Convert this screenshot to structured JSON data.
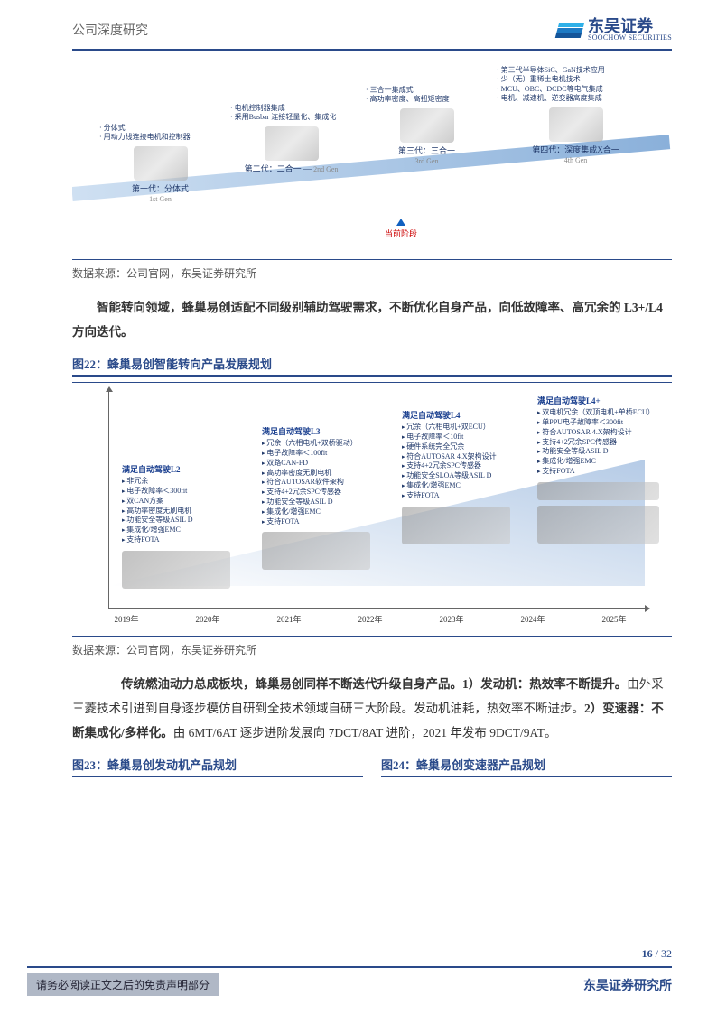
{
  "colors": {
    "brand": "#2a4a8a",
    "logo_bars": [
      "#2fb0e8",
      "#1d7ac4",
      "#14559a"
    ],
    "accent_red": "#c00000",
    "grey_bar": "#b0b8c6",
    "text_grey": "#666666",
    "steer_gradient": "rgba(120,160,210,0.55)"
  },
  "header": {
    "report_type": "公司深度研究",
    "logo_cn": "东吴证券",
    "logo_en": "SOOCHOW SECURITIES"
  },
  "fig21": {
    "source": "数据来源：公司官网，东吴证券研究所",
    "gen1": {
      "bullets": [
        "分体式",
        "用动力线连接电机和控制器"
      ],
      "label_cn": "第一代：分体式",
      "label_en": "1st Gen"
    },
    "gen2": {
      "bullets": [
        "电机控制器集成",
        "采用Busbar 连接轻量化、集成化"
      ],
      "label_cn": "第二代：二合一",
      "label_en": "2nd Gen"
    },
    "gen3": {
      "bullets": [
        "三合一集成式",
        "高功率密度、高扭矩密度"
      ],
      "label_cn": "第三代：三合一",
      "label_en": "3rd Gen"
    },
    "gen4": {
      "bullets": [
        "第三代半导体SiC、GaN技术应用",
        "少（无）重稀土电机技术",
        "MCU、OBC、DCDC等电气集成",
        "电机、减速机、逆变器高度集成"
      ],
      "label_cn": "第四代：深度集成X合一",
      "label_en": "4th Gen"
    },
    "current": "当前阶段"
  },
  "para1_lead": "智能转向领域，蜂巢易创适配不同级别辅助驾驶需求，不断优化自身产品，向低故障率、高冗余的 L3+/L4 方向迭代。",
  "fig22": {
    "caption": "图22：蜂巢易创智能转向产品发展规划",
    "source": "数据来源：公司官网，东吴证券研究所",
    "years": [
      "2019年",
      "2020年",
      "2021年",
      "2022年",
      "2023年",
      "2024年",
      "2025年"
    ],
    "xtick_positions": [
      60,
      150,
      240,
      330,
      420,
      510,
      600
    ],
    "l2": {
      "hd": "满足自动驾驶L2",
      "bullets": [
        "非冗余",
        "电子故障率＜300fit",
        "双CAN方案",
        "高功率密度无刷电机",
        "功能安全等级ASIL D",
        "集成化/增强EMC",
        "支持FOTA"
      ]
    },
    "l3": {
      "hd": "满足自动驾驶L3",
      "bullets": [
        "冗余（六相电机+双桥驱动）",
        "电子故障率＜100fit",
        "双路CAN-FD",
        "高功率密度无刷电机",
        "符合AUTOSAR软件架构",
        "支持4+2冗余SPC传感器",
        "功能安全等级ASIL D",
        "集成化/增强EMC",
        "支持FOTA"
      ]
    },
    "l4": {
      "hd": "满足自动驾驶L4",
      "bullets": [
        "冗余（六相电机+双ECU）",
        "电子故障率＜10fit",
        "硬件系统完全冗余",
        "符合AUTOSAR 4.X架构设计",
        "支持4+2冗余SPC传感器",
        "功能安全SLOA等级ASIL D",
        "集成化/增强EMC",
        "支持FOTA"
      ]
    },
    "l4p": {
      "hd": "满足自动驾驶L4+",
      "bullets": [
        "双电机冗余（双顶电机+单桥ECU）",
        "单PPU电子故障率＜300fit",
        "符合AUTOSAR 4.X架构设计",
        "支持4+2冗余SPC传感器",
        "功能安全等级ASIL D",
        "集成化/增强EMC",
        "支持FOTA"
      ]
    }
  },
  "para2_html": "　　<b>传统燃油动力总成板块，蜂巢易创同样不断迭代升级自身产品。1）发动机：热效率不断提升。</b>由外采三菱技术引进到自身逐步模仿自研到全技术领域自研三大阶段。发动机油耗，热效率不断进步。<b>2）变速器：不断集成化/多样化。</b>由 6MT/6AT 逐步进阶发展向 7DCT/8AT 进阶，2021 年发布 9DCT/9AT。",
  "fig23": {
    "caption": "图23：蜂巢易创发动机产品规划"
  },
  "fig24": {
    "caption": "图24：蜂巢易创变速器产品规划"
  },
  "footer": {
    "page_cur": "16",
    "page_total": "32",
    "disclaimer": "请务必阅读正文之后的免责声明部分",
    "brand": "东吴证券研究所"
  }
}
